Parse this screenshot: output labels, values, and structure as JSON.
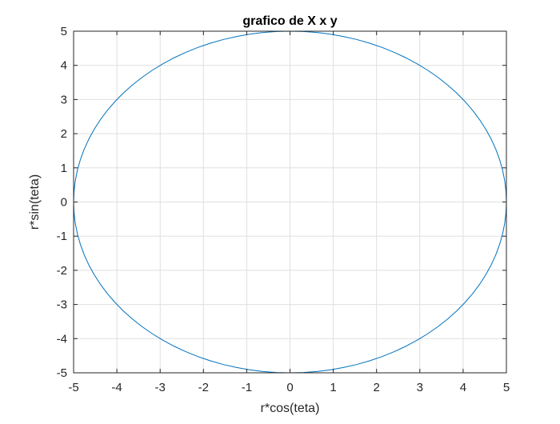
{
  "chart_data": {
    "type": "line",
    "title": "grafico de X x y",
    "xlabel": "r*cos(teta)",
    "ylabel": "r*sin(teta)",
    "xlim": [
      -5,
      5
    ],
    "ylim": [
      -5,
      5
    ],
    "xticks": [
      -5,
      -4,
      -3,
      -2,
      -1,
      0,
      1,
      2,
      3,
      4,
      5
    ],
    "yticks": [
      -5,
      -4,
      -3,
      -2,
      -1,
      0,
      1,
      2,
      3,
      4,
      5
    ],
    "xtick_labels": [
      "-5",
      "-4",
      "-3",
      "-2",
      "-1",
      "0",
      "1",
      "2",
      "3",
      "4",
      "5"
    ],
    "ytick_labels": [
      "-5",
      "-4",
      "-3",
      "-2",
      "-1",
      "0",
      "1",
      "2",
      "3",
      "4",
      "5"
    ],
    "grid": true,
    "series": [
      {
        "color": "#0072bd",
        "x": [
          5,
          4.9901,
          4.9606,
          4.9114,
          4.8429,
          4.7553,
          4.6489,
          4.5241,
          4.3815,
          4.2216,
          4.0451,
          3.8526,
          3.6448,
          3.4227,
          3.1871,
          2.9389,
          2.679,
          2.4087,
          2.1289,
          1.8406,
          1.5451,
          1.2434,
          0.9369,
          0.6267,
          0.3141,
          0,
          -0.3141,
          -0.6267,
          -0.9369,
          -1.2434,
          -1.5451,
          -1.8406,
          -2.1289,
          -2.4087,
          -2.679,
          -2.9389,
          -3.1871,
          -3.4227,
          -3.6448,
          -3.8526,
          -4.0451,
          -4.2216,
          -4.3815,
          -4.5241,
          -4.6489,
          -4.7553,
          -4.8429,
          -4.9114,
          -4.9606,
          -4.9901,
          -5,
          -4.9901,
          -4.9606,
          -4.9114,
          -4.8429,
          -4.7553,
          -4.6489,
          -4.5241,
          -4.3815,
          -4.2216,
          -4.0451,
          -3.8526,
          -3.6448,
          -3.4227,
          -3.1871,
          -2.9389,
          -2.679,
          -2.4087,
          -2.1289,
          -1.8406,
          -1.5451,
          -1.2434,
          -0.9369,
          -0.6267,
          -0.3141,
          0,
          0.3141,
          0.6267,
          0.9369,
          1.2434,
          1.5451,
          1.8406,
          2.1289,
          2.4087,
          2.679,
          2.9389,
          3.1871,
          3.4227,
          3.6448,
          3.8526,
          4.0451,
          4.2216,
          4.3815,
          4.5241,
          4.6489,
          4.7553,
          4.8429,
          4.9114,
          4.9606,
          4.9901,
          5
        ],
        "y": [
          0,
          0.3141,
          0.6267,
          0.9369,
          1.2434,
          1.5451,
          1.8406,
          2.1289,
          2.4087,
          2.679,
          2.9389,
          3.1871,
          3.4227,
          3.6448,
          3.8526,
          4.0451,
          4.2216,
          4.3815,
          4.5241,
          4.6489,
          4.7553,
          4.8429,
          4.9114,
          4.9606,
          4.9901,
          5,
          4.9901,
          4.9606,
          4.9114,
          4.8429,
          4.7553,
          4.6489,
          4.5241,
          4.3815,
          4.2216,
          4.0451,
          3.8526,
          3.6448,
          3.4227,
          3.1871,
          2.9389,
          2.679,
          2.4087,
          2.1289,
          1.8406,
          1.5451,
          1.2434,
          0.9369,
          0.6267,
          0.3141,
          0,
          -0.3141,
          -0.6267,
          -0.9369,
          -1.2434,
          -1.5451,
          -1.8406,
          -2.1289,
          -2.4087,
          -2.679,
          -2.9389,
          -3.1871,
          -3.4227,
          -3.6448,
          -3.8526,
          -4.0451,
          -4.2216,
          -4.3815,
          -4.5241,
          -4.6489,
          -4.7553,
          -4.8429,
          -4.9114,
          -4.9606,
          -4.9901,
          -5,
          -4.9901,
          -4.9606,
          -4.9114,
          -4.8429,
          -4.7553,
          -4.6489,
          -4.5241,
          -4.3815,
          -4.2216,
          -4.0451,
          -3.8526,
          -3.6448,
          -3.4227,
          -3.1871,
          -2.9389,
          -2.679,
          -2.4087,
          -2.1289,
          -1.8406,
          -1.5451,
          -1.2434,
          -0.9369,
          -0.6267,
          -0.3141,
          0
        ]
      }
    ]
  }
}
